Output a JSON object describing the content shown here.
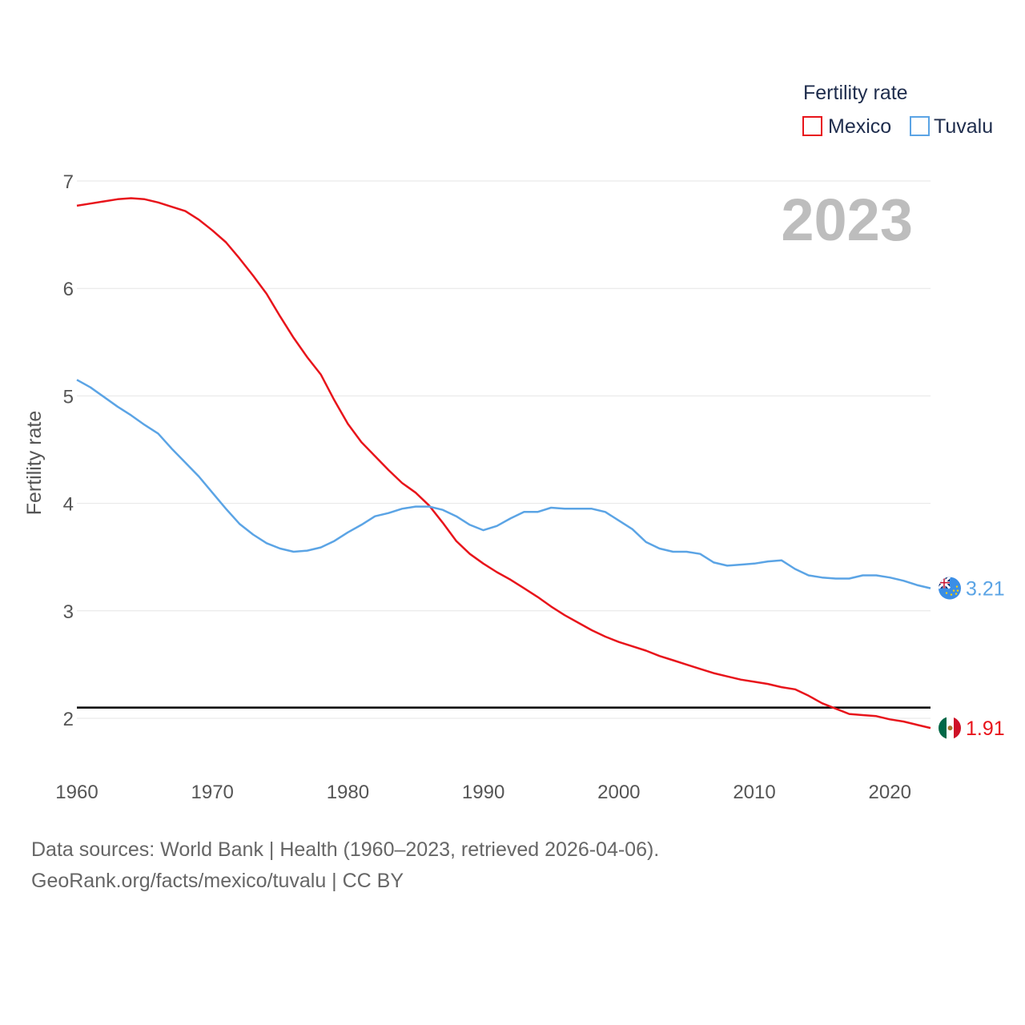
{
  "chart_data": {
    "type": "line",
    "title": "Fertility rate",
    "ylabel": "Fertility rate",
    "xlabel": "",
    "year_display": "2023",
    "xlim": [
      1960,
      2023
    ],
    "ylim": [
      1.5,
      7.2
    ],
    "x_ticks": [
      1960,
      1970,
      1980,
      1990,
      2000,
      2010,
      2020
    ],
    "y_ticks": [
      2,
      3,
      4,
      5,
      6,
      7
    ],
    "reference_line": {
      "value": 2.1,
      "color": "#000000"
    },
    "legend": {
      "title": "Fertility rate",
      "position": "top-right"
    },
    "series": [
      {
        "name": "Mexico",
        "color": "#e8141b",
        "end_label": "1.91",
        "x": [
          1960,
          1961,
          1962,
          1963,
          1964,
          1965,
          1966,
          1967,
          1968,
          1969,
          1970,
          1971,
          1972,
          1973,
          1974,
          1975,
          1976,
          1977,
          1978,
          1979,
          1980,
          1981,
          1982,
          1983,
          1984,
          1985,
          1986,
          1987,
          1988,
          1989,
          1990,
          1991,
          1992,
          1993,
          1994,
          1995,
          1996,
          1997,
          1998,
          1999,
          2000,
          2001,
          2002,
          2003,
          2004,
          2005,
          2006,
          2007,
          2008,
          2009,
          2010,
          2011,
          2012,
          2013,
          2014,
          2015,
          2016,
          2017,
          2018,
          2019,
          2020,
          2021,
          2022,
          2023
        ],
        "values": [
          6.77,
          6.79,
          6.81,
          6.83,
          6.84,
          6.83,
          6.8,
          6.76,
          6.72,
          6.64,
          6.54,
          6.43,
          6.28,
          6.12,
          5.95,
          5.74,
          5.54,
          5.36,
          5.2,
          4.96,
          4.74,
          4.57,
          4.44,
          4.31,
          4.19,
          4.1,
          3.98,
          3.82,
          3.65,
          3.53,
          3.44,
          3.36,
          3.29,
          3.21,
          3.13,
          3.04,
          2.96,
          2.89,
          2.82,
          2.76,
          2.71,
          2.67,
          2.63,
          2.58,
          2.54,
          2.5,
          2.46,
          2.42,
          2.39,
          2.36,
          2.34,
          2.32,
          2.29,
          2.27,
          2.21,
          2.14,
          2.09,
          2.04,
          2.03,
          2.02,
          1.99,
          1.97,
          1.94,
          1.91
        ]
      },
      {
        "name": "Tuvalu",
        "color": "#5ba4e5",
        "end_label": "3.21",
        "x": [
          1960,
          1961,
          1962,
          1963,
          1964,
          1965,
          1966,
          1967,
          1968,
          1969,
          1970,
          1971,
          1972,
          1973,
          1974,
          1975,
          1976,
          1977,
          1978,
          1979,
          1980,
          1981,
          1982,
          1983,
          1984,
          1985,
          1986,
          1987,
          1988,
          1989,
          1990,
          1991,
          1992,
          1993,
          1994,
          1995,
          1996,
          1997,
          1998,
          1999,
          2000,
          2001,
          2002,
          2003,
          2004,
          2005,
          2006,
          2007,
          2008,
          2009,
          2010,
          2011,
          2012,
          2013,
          2014,
          2015,
          2016,
          2017,
          2018,
          2019,
          2020,
          2021,
          2022,
          2023
        ],
        "values": [
          5.15,
          5.08,
          4.99,
          4.9,
          4.82,
          4.73,
          4.65,
          4.51,
          4.38,
          4.25,
          4.1,
          3.95,
          3.81,
          3.71,
          3.63,
          3.58,
          3.55,
          3.56,
          3.59,
          3.65,
          3.73,
          3.8,
          3.88,
          3.91,
          3.95,
          3.97,
          3.97,
          3.94,
          3.88,
          3.8,
          3.75,
          3.79,
          3.86,
          3.92,
          3.92,
          3.96,
          3.95,
          3.95,
          3.95,
          3.92,
          3.84,
          3.76,
          3.64,
          3.58,
          3.55,
          3.55,
          3.53,
          3.45,
          3.42,
          3.43,
          3.44,
          3.46,
          3.47,
          3.39,
          3.33,
          3.31,
          3.3,
          3.3,
          3.33,
          3.33,
          3.31,
          3.28,
          3.24,
          3.21
        ]
      }
    ]
  },
  "footer": {
    "source_line": "Data sources: World Bank | Health (1960–2023, retrieved 2026-04-06).",
    "credit_line": "GeoRank.org/facts/mexico/tuvalu | CC BY"
  },
  "flags": {
    "mexico": "mexico-flag-icon",
    "tuvalu": "tuvalu-flag-icon"
  }
}
